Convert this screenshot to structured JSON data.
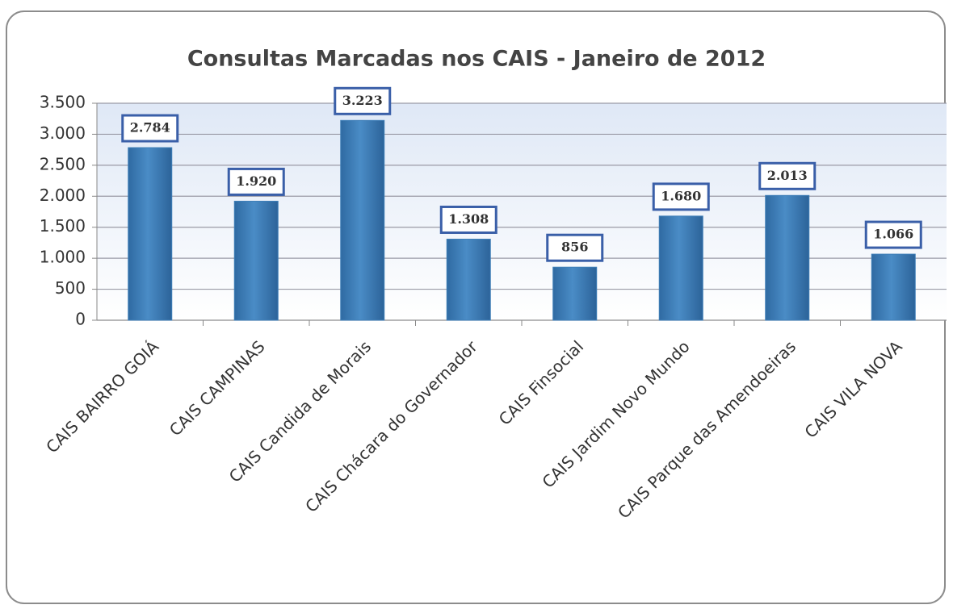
{
  "chart_data": {
    "type": "bar",
    "title": "Consultas Marcadas nos CAIS - Janeiro de 2012",
    "categories": [
      "CAIS BAIRRO GOIÁ",
      "CAIS CAMPINAS",
      "CAIS Candida de Morais",
      "CAIS Chácara do Governador",
      "CAIS Finsocial",
      "CAIS Jardim Novo Mundo",
      "CAIS Parque das Amendoeiras",
      "CAIS VILA NOVA"
    ],
    "values": [
      2784,
      1920,
      3223,
      1308,
      856,
      1680,
      2013,
      1066
    ],
    "value_labels": [
      "2.784",
      "1.920",
      "3.223",
      "1.308",
      "856",
      "1.680",
      "2.013",
      "1.066"
    ],
    "color": "#3f7fb8",
    "ylim": [
      0,
      3500
    ],
    "yticks": [
      0,
      500,
      {
        "value": 1000,
        "label": "1.000"
      },
      {
        "value": 1500,
        "label": "1.500"
      },
      {
        "value": 2000,
        "label": "2.000"
      },
      {
        "value": 2500,
        "label": "2.500"
      },
      {
        "value": 3000,
        "label": "3.000"
      },
      {
        "value": 3500,
        "label": "3.500"
      }
    ],
    "grid": true
  }
}
